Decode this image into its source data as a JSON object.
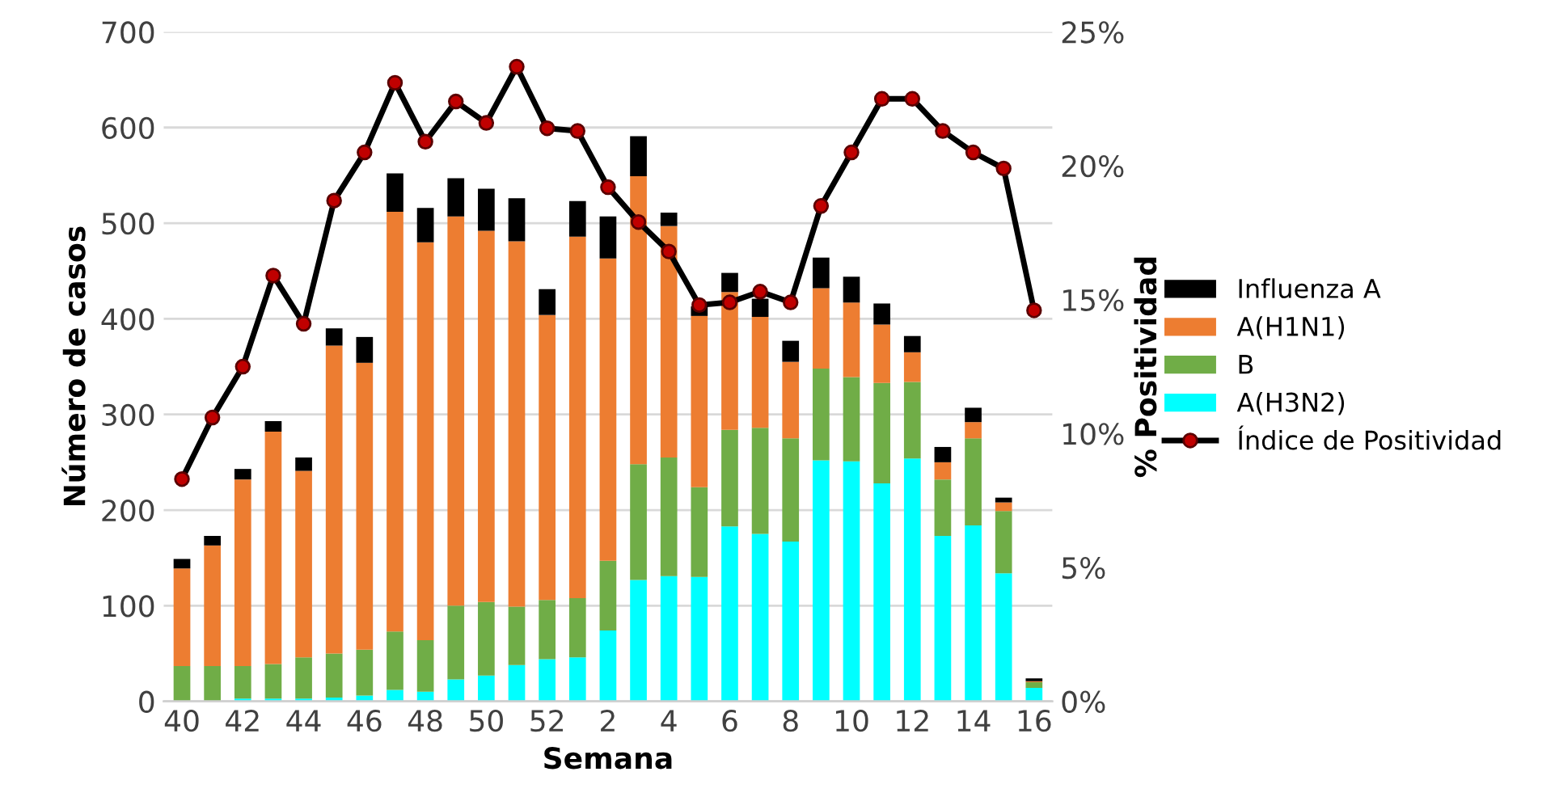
{
  "chart_data": {
    "type": "bar",
    "stacked": true,
    "xlabel": "Semana",
    "ylabel": "Número de casos",
    "y2label": "% Positividad",
    "categories": [
      "40",
      null,
      "42",
      null,
      "44",
      null,
      "46",
      null,
      "48",
      null,
      "50",
      null,
      "52",
      null,
      "2",
      null,
      "4",
      null,
      "6",
      null,
      "8",
      null,
      "10",
      null,
      "12",
      null,
      "14",
      null,
      "16"
    ],
    "series": [
      {
        "name": "A(H3N2)",
        "color": "#00ffff",
        "values": [
          0,
          0,
          3,
          3,
          3,
          4,
          6,
          12,
          10,
          23,
          27,
          38,
          44,
          46,
          74,
          127,
          131,
          130,
          183,
          175,
          167,
          252,
          251,
          228,
          254,
          173,
          184,
          134,
          14
        ]
      },
      {
        "name": "B",
        "color": "#70ad47",
        "values": [
          37,
          37,
          34,
          36,
          43,
          46,
          48,
          61,
          54,
          77,
          77,
          61,
          62,
          62,
          73,
          121,
          124,
          94,
          101,
          111,
          108,
          96,
          88,
          105,
          80,
          59,
          91,
          65,
          6
        ]
      },
      {
        "name": "A(H1N1)",
        "color": "#ed7d31",
        "values": [
          102,
          126,
          195,
          243,
          195,
          322,
          300,
          439,
          416,
          407,
          388,
          382,
          298,
          378,
          316,
          301,
          242,
          179,
          144,
          116,
          80,
          84,
          78,
          61,
          31,
          18,
          17,
          9,
          1
        ]
      },
      {
        "name": "Influenza A",
        "color": "#000000",
        "values": [
          10,
          10,
          11,
          11,
          14,
          18,
          27,
          40,
          36,
          40,
          44,
          45,
          27,
          37,
          44,
          42,
          14,
          10,
          20,
          19,
          22,
          32,
          27,
          22,
          17,
          16,
          15,
          5,
          3
        ]
      },
      {
        "name": "Índice de Positividad",
        "type": "line",
        "axis": "y2",
        "color": "#000000",
        "marker": "circle",
        "values": [
          8.3,
          10.6,
          12.5,
          15.9,
          14.1,
          18.7,
          20.5,
          23.1,
          20.9,
          22.4,
          21.6,
          23.7,
          21.4,
          21.3,
          19.2,
          17.9,
          16.8,
          14.8,
          14.9,
          15.3,
          14.9,
          18.5,
          20.5,
          22.5,
          22.5,
          21.3,
          20.5,
          19.9,
          14.6
        ]
      }
    ],
    "ylim": [
      0,
      700
    ],
    "yticks": [
      0,
      100,
      200,
      300,
      400,
      500,
      600,
      700
    ],
    "y2lim": [
      0,
      25
    ],
    "y2ticks": [
      {
        "value": 0,
        "label": "0%"
      },
      {
        "value": 5,
        "label": "5%"
      },
      {
        "value": 10,
        "label": "10%"
      },
      {
        "value": 15,
        "label": "15%"
      },
      {
        "value": 20,
        "label": "20%"
      },
      {
        "value": 25,
        "label": "25%"
      }
    ],
    "grid": "y",
    "legend": "right"
  }
}
